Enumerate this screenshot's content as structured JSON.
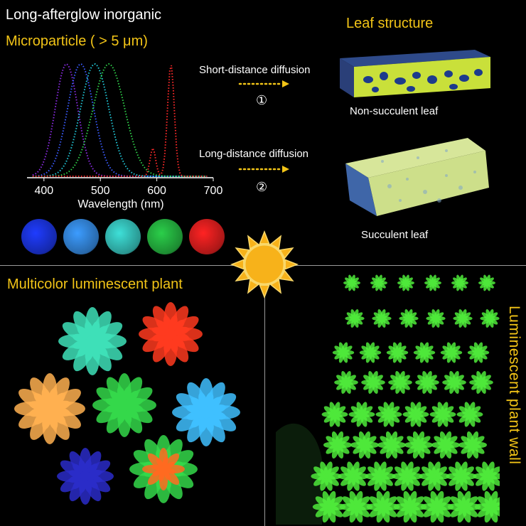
{
  "header": {
    "line1": "Long-afterglow inorganic",
    "line2": "Microparticle ( > 5 μm)"
  },
  "leaf_section": {
    "title": "Leaf structure",
    "arrow1_label": "Short-distance diffusion",
    "arrow1_number": "①",
    "arrow2_label": "Long-distance diffusion",
    "arrow2_number": "②",
    "leaf1_caption": "Non-succulent leaf",
    "leaf2_caption": "Succulent leaf"
  },
  "plant_section": {
    "title": "Multicolor luminescent plant",
    "wall_title": "Luminescent plant wall"
  },
  "chart_data": {
    "type": "line",
    "xlabel": "Wavelength (nm)",
    "xlim": [
      370,
      700
    ],
    "xticks": [
      400,
      500,
      600,
      700
    ],
    "series": [
      {
        "peak": 440,
        "width": 20,
        "color": "#8a2be2"
      },
      {
        "peak": 465,
        "width": 23,
        "color": "#3a5cff"
      },
      {
        "peak": 490,
        "width": 25,
        "color": "#21c8d8"
      },
      {
        "peak": 515,
        "width": 28,
        "color": "#2fd14a"
      },
      {
        "peak": 625,
        "width": 6,
        "color": "#ff2a2a",
        "secondary_peak": 593,
        "secondary_height": 0.25
      }
    ]
  },
  "color_swatches": [
    "#1f3cff",
    "#3c9cff",
    "#3ee0d8",
    "#2bcf4a",
    "#ff2323"
  ],
  "sun": {
    "color": "#f7b21a",
    "glow": "#f9d86a"
  },
  "leaf_colors": {
    "leaf1_body": "#c9e03a",
    "leaf1_dots": "#1d3b8c",
    "leaf2_body": "#cddf8a",
    "leaf2_side": "#3f66a8"
  },
  "plant_colors": [
    "#3ee0b8",
    "#ff3a1f",
    "#ffb050",
    "#34d84a",
    "#3fc0ff",
    "#2a2cc8",
    "#ff6a20"
  ]
}
